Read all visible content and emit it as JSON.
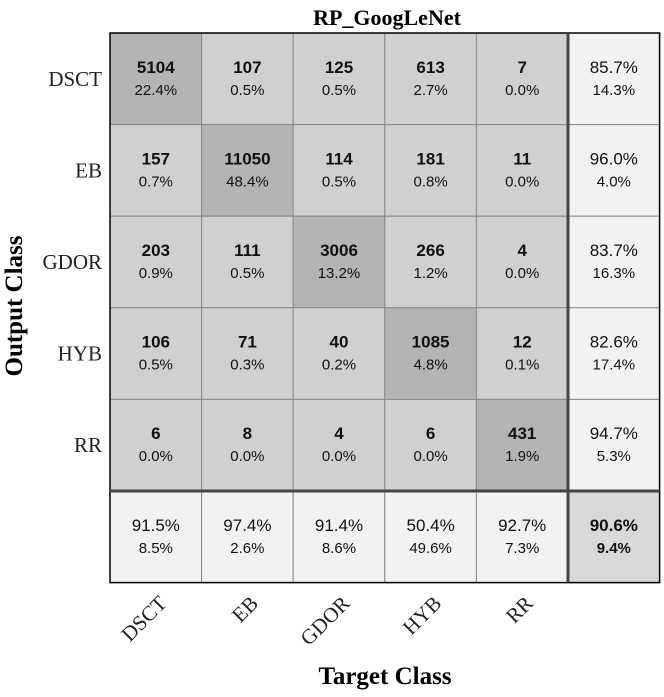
{
  "chart_data": {
    "type": "heatmap",
    "title": "RP_GoogLeNet",
    "xlabel": "Target Class",
    "ylabel": "Output Class",
    "classes": [
      "DSCT",
      "EB",
      "GDOR",
      "HYB",
      "RR"
    ],
    "counts": [
      [
        5104,
        107,
        125,
        613,
        7
      ],
      [
        157,
        11050,
        114,
        181,
        11
      ],
      [
        203,
        111,
        3006,
        266,
        4
      ],
      [
        106,
        71,
        40,
        1085,
        12
      ],
      [
        6,
        8,
        4,
        6,
        431
      ]
    ],
    "percents": [
      [
        "22.4%",
        "0.5%",
        "0.5%",
        "2.7%",
        "0.0%"
      ],
      [
        "0.7%",
        "48.4%",
        "0.5%",
        "0.8%",
        "0.0%"
      ],
      [
        "0.9%",
        "0.5%",
        "13.2%",
        "1.2%",
        "0.0%"
      ],
      [
        "0.5%",
        "0.3%",
        "0.2%",
        "4.8%",
        "0.1%"
      ],
      [
        "0.0%",
        "0.0%",
        "0.0%",
        "0.0%",
        "1.9%"
      ]
    ],
    "row_summary": [
      [
        "85.7%",
        "14.3%"
      ],
      [
        "96.0%",
        "4.0%"
      ],
      [
        "83.7%",
        "16.3%"
      ],
      [
        "82.6%",
        "17.4%"
      ],
      [
        "94.7%",
        "5.3%"
      ]
    ],
    "col_summary": [
      [
        "91.5%",
        "8.5%"
      ],
      [
        "97.4%",
        "2.6%"
      ],
      [
        "91.4%",
        "8.6%"
      ],
      [
        "50.4%",
        "49.6%"
      ],
      [
        "92.7%",
        "7.3%"
      ]
    ],
    "overall": [
      "90.6%",
      "9.4%"
    ],
    "colors": {
      "diagonal": "#b4b4b4",
      "offdiagonal": "#d0d0d0",
      "summary": "#f2f2f2",
      "overall": "#d9d9d9",
      "border": "#000000",
      "gridline": "#888888"
    }
  }
}
